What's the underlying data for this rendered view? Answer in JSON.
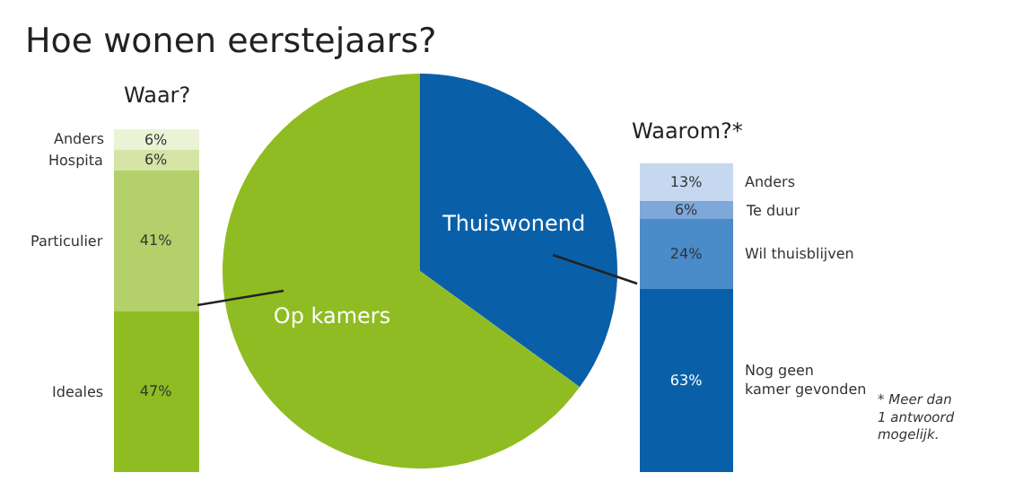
{
  "chart_data": [
    {
      "type": "bar",
      "stacked": true,
      "title": "Waar?",
      "categories": [
        null
      ],
      "legend": false,
      "series": [
        {
          "name": "Ideales",
          "color": "#8fbc22",
          "values": [
            47
          ],
          "value_labels": [
            "47%"
          ]
        },
        {
          "name": "Particulier",
          "color": "#b3d06a",
          "values": [
            41
          ],
          "value_labels": [
            "41%"
          ]
        },
        {
          "name": "Hospita",
          "color": "#d5e5a6",
          "values": [
            6
          ],
          "value_labels": [
            "6%"
          ]
        },
        {
          "name": "Anders",
          "color": "#ebf2d6",
          "values": [
            6
          ],
          "value_labels": [
            "6%"
          ]
        }
      ]
    },
    {
      "type": "pie",
      "title": "Hoe wonen eerstejaars?",
      "categories": [
        "Thuiswonend",
        "Op kamers"
      ],
      "values": [
        35,
        65
      ],
      "colors": [
        "#0a60a8",
        "#8fbc22"
      ],
      "legend": false
    },
    {
      "type": "bar",
      "stacked": true,
      "title": "Waarom?*",
      "categories": [
        null
      ],
      "legend": false,
      "annotations": [
        "* Meer dan\n1 antwoord\nmogelijk."
      ],
      "series": [
        {
          "name": "Nog geen\nkamer gevonden",
          "color": "#0a60a8",
          "values": [
            63
          ],
          "value_labels": [
            "63%"
          ]
        },
        {
          "name": "Wil thuisblijven",
          "color": "#4a8bc9",
          "values": [
            24
          ],
          "value_labels": [
            "24%"
          ]
        },
        {
          "name": "Te duur",
          "color": "#7ea8da",
          "values": [
            6
          ],
          "value_labels": [
            "6%"
          ]
        },
        {
          "name": "Anders",
          "color": "#c6d8ef",
          "values": [
            13
          ],
          "value_labels": [
            "13%"
          ]
        }
      ]
    }
  ]
}
